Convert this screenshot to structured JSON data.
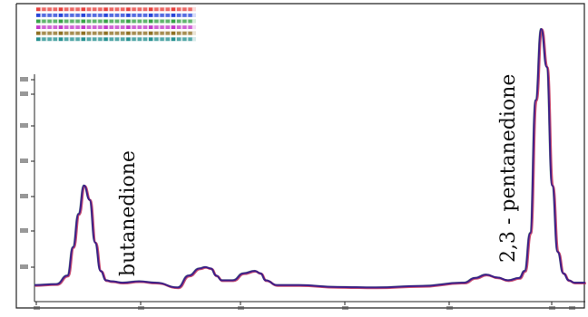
{
  "chart_data": {
    "type": "line",
    "title": "",
    "xlabel": "",
    "ylabel": "",
    "x_range": [
      0,
      100
    ],
    "y_range": [
      0,
      100
    ],
    "grid": false,
    "legend": {
      "placement": "top-left",
      "entries": [
        {
          "color": "#e53935"
        },
        {
          "color": "#1e3cd6"
        },
        {
          "color": "#2e9e3e"
        },
        {
          "color": "#c02fc7"
        },
        {
          "color": "#8a6a1a"
        },
        {
          "color": "#1a8a8a"
        }
      ]
    },
    "x_tick_values": [
      0,
      20,
      40,
      60,
      80,
      97
    ],
    "y_tick_values": [
      10,
      20,
      30,
      40,
      50,
      60,
      70
    ],
    "series": [
      {
        "color": "#3a1a8a",
        "x": [
          0,
          4,
          6,
          7,
          8,
          9,
          10,
          11,
          12,
          13,
          14,
          16,
          19,
          22,
          26,
          28,
          30,
          31,
          32,
          33,
          34,
          36,
          38,
          40,
          41,
          42,
          44,
          48,
          55,
          62,
          70,
          78,
          80,
          82,
          84,
          86,
          88,
          89,
          90,
          91,
          92,
          93,
          94,
          95,
          96,
          97,
          98,
          100
        ],
        "y": [
          1,
          1.2,
          3,
          9,
          16,
          22,
          19,
          10,
          4,
          2,
          1.8,
          1.5,
          1.8,
          1.5,
          0.5,
          3,
          4.5,
          4.8,
          4.5,
          3,
          2,
          2,
          3.5,
          4,
          3.5,
          2,
          1,
          1,
          0.6,
          0.5,
          0.8,
          1.5,
          2.5,
          3.2,
          2.6,
          2,
          2.5,
          4,
          12,
          40,
          55,
          47,
          22,
          8,
          3.5,
          2,
          1.5,
          1.5
        ]
      }
    ],
    "annotations": [
      {
        "text": "butanedione",
        "x": 16,
        "y": 4
      },
      {
        "text": "2,3 - pentanedione",
        "x": 87,
        "y": 14
      }
    ]
  }
}
